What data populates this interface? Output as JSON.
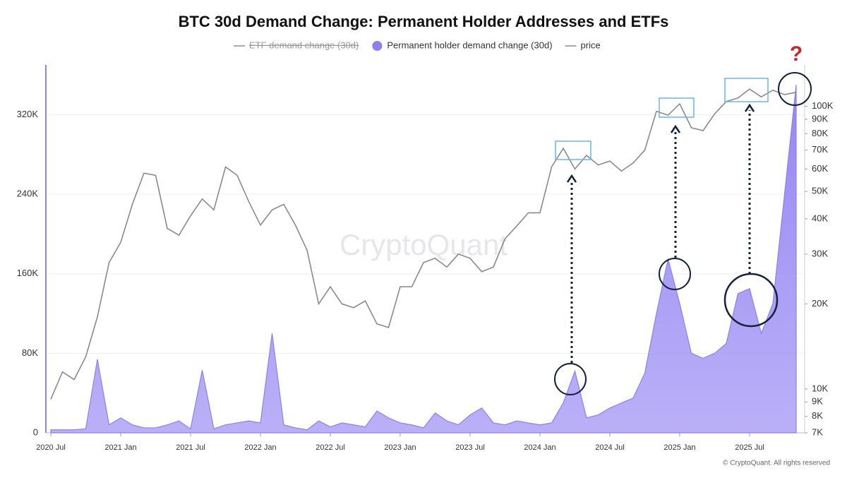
{
  "chart_data": {
    "type": "line",
    "title": "BTC 30d Demand Change: Permanent Holder Addresses and ETFs",
    "x": [
      "2020-07",
      "2020-08",
      "2020-09",
      "2020-10",
      "2020-11",
      "2020-12",
      "2021-01",
      "2021-02",
      "2021-03",
      "2021-04",
      "2021-05",
      "2021-06",
      "2021-07",
      "2021-08",
      "2021-09",
      "2021-10",
      "2021-11",
      "2021-12",
      "2022-01",
      "2022-02",
      "2022-03",
      "2022-04",
      "2022-05",
      "2022-06",
      "2022-07",
      "2022-08",
      "2022-09",
      "2022-10",
      "2022-11",
      "2022-12",
      "2023-01",
      "2023-02",
      "2023-03",
      "2023-04",
      "2023-05",
      "2023-06",
      "2023-07",
      "2023-08",
      "2023-09",
      "2023-10",
      "2023-11",
      "2023-12",
      "2024-01",
      "2024-02",
      "2024-03",
      "2024-04",
      "2024-05",
      "2024-06",
      "2024-07",
      "2024-08",
      "2024-09",
      "2024-10",
      "2024-11",
      "2024-12",
      "2025-01",
      "2025-02",
      "2025-03",
      "2025-04",
      "2025-05",
      "2025-06",
      "2025-07",
      "2025-08",
      "2025-09",
      "2025-10",
      "2025-11"
    ],
    "series": [
      {
        "name": "ETF demand change (30d)",
        "color": "#8c8c8c",
        "visible": false
      },
      {
        "name": "Permanent holder demand change (30d)",
        "type": "area",
        "axis": "y",
        "color": "#8f7ff2",
        "values": [
          3000,
          3000,
          3000,
          4000,
          74000,
          8000,
          15000,
          8000,
          5000,
          5000,
          8000,
          12000,
          4000,
          63000,
          4000,
          8000,
          10000,
          12000,
          10000,
          100000,
          8000,
          5000,
          3000,
          12000,
          6000,
          10000,
          8000,
          6000,
          22000,
          15000,
          10000,
          8000,
          5000,
          20000,
          12000,
          8000,
          18000,
          25000,
          10000,
          8000,
          12000,
          10000,
          8000,
          10000,
          30000,
          62000,
          15000,
          18000,
          25000,
          30000,
          35000,
          60000,
          120000,
          175000,
          130000,
          80000,
          75000,
          80000,
          90000,
          140000,
          145000,
          100000,
          130000,
          240000,
          350000
        ]
      },
      {
        "name": "price",
        "type": "line",
        "axis": "y2",
        "color": "#8a8a8a",
        "values": [
          9200,
          11500,
          10800,
          13000,
          18000,
          28000,
          33000,
          45000,
          58000,
          57000,
          37000,
          35000,
          41000,
          47000,
          43000,
          61000,
          57000,
          46000,
          38000,
          43000,
          45000,
          38000,
          31000,
          20000,
          23000,
          20000,
          19400,
          20500,
          17000,
          16500,
          23000,
          23000,
          28000,
          29000,
          27000,
          30000,
          29000,
          26000,
          27000,
          34000,
          37700,
          42000,
          42000,
          61000,
          71000,
          60000,
          67000,
          62000,
          64000,
          59000,
          63000,
          70000,
          96000,
          93000,
          102000,
          84000,
          82000,
          94000,
          104000,
          107000,
          115000,
          108000,
          114000,
          110000,
          112000
        ]
      }
    ],
    "ylim": [
      0,
      370000
    ],
    "yticks": [
      0,
      {
        "value": 80000,
        "label": "80K"
      },
      {
        "value": 160000,
        "label": "160K"
      },
      {
        "value": 240000,
        "label": "240K"
      },
      {
        "value": 320000,
        "label": "320K"
      }
    ],
    "y2lim": [
      7000,
      140000
    ],
    "y2log": true,
    "y2ticks": [
      {
        "value": 7000,
        "label": "7K"
      },
      {
        "value": 8000,
        "label": "8K"
      },
      {
        "value": 9000,
        "label": "9K"
      },
      {
        "value": 10000,
        "label": "10K"
      },
      {
        "value": 20000,
        "label": "20K"
      },
      {
        "value": 30000,
        "label": "30K"
      },
      {
        "value": 40000,
        "label": "40K"
      },
      {
        "value": 50000,
        "label": "50K"
      },
      {
        "value": 60000,
        "label": "60K"
      },
      {
        "value": 70000,
        "label": "70K"
      },
      {
        "value": 80000,
        "label": "80K"
      },
      {
        "value": 90000,
        "label": "90K"
      },
      {
        "value": 100000,
        "label": "100K"
      }
    ],
    "xticks": [
      {
        "value": "2020-07",
        "label": "2020 Jul"
      },
      {
        "value": "2021-01",
        "label": "2021 Jan"
      },
      {
        "value": "2021-07",
        "label": "2021 Jul"
      },
      {
        "value": "2022-01",
        "label": "2022 Jan"
      },
      {
        "value": "2022-07",
        "label": "2022 Jul"
      },
      {
        "value": "2023-01",
        "label": "2023 Jan"
      },
      {
        "value": "2023-07",
        "label": "2023 Jul"
      },
      {
        "value": "2024-01",
        "label": "2024 Jan"
      },
      {
        "value": "2024-07",
        "label": "2024 Jul"
      },
      {
        "value": "2025-01",
        "label": "2025 Jan"
      },
      {
        "value": "2025-07",
        "label": "2025 Jul"
      }
    ],
    "grid": true,
    "legend": "top",
    "watermark": "CryptoQuant",
    "annotation": "?",
    "footer": "© CryptoQuant. All rights reserved"
  }
}
